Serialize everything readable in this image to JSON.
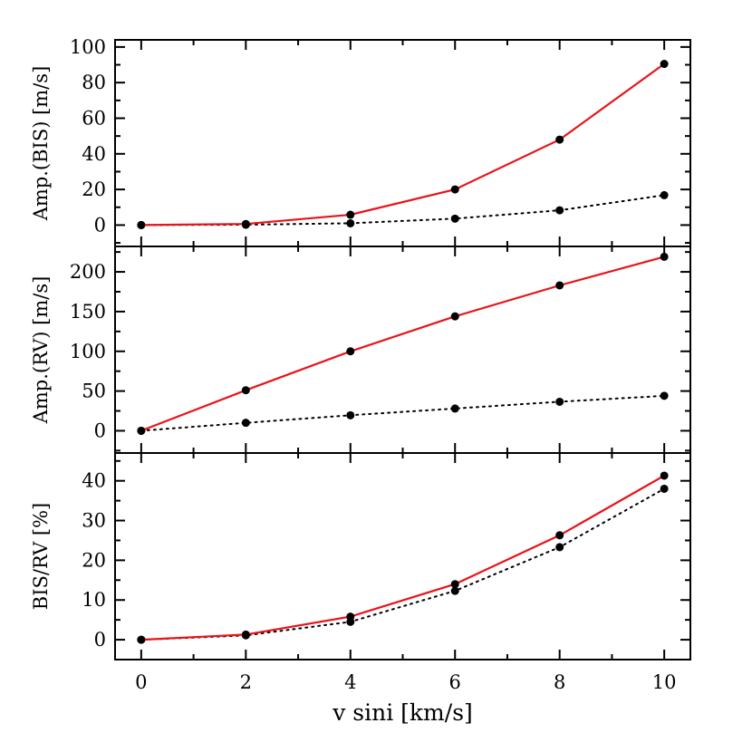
{
  "chart_data": {
    "type": "line",
    "x_shared": [
      0,
      2,
      4,
      6,
      8,
      10
    ],
    "xlabel": "v sini [km/s]",
    "xlim": [
      -0.5,
      10.5
    ],
    "xticks": [
      0,
      2,
      4,
      6,
      8,
      10
    ],
    "xtick_labels": [
      "0",
      "2",
      "4",
      "6",
      "8",
      "10"
    ],
    "grid": false,
    "panels": [
      {
        "ylabel": "Amp.(BIS) [m/s]",
        "ylim": [
          -12,
          104
        ],
        "yticks": [
          0,
          20,
          40,
          60,
          80,
          100
        ],
        "ytick_labels": [
          "0",
          "20",
          "40",
          "60",
          "80",
          "100"
        ],
        "series": [
          {
            "style": "solid",
            "color": "#e8141a",
            "values": [
              0,
              0.6,
              5.8,
              20,
              48,
              90.5
            ]
          },
          {
            "style": "dotted",
            "color": "#000000",
            "values": [
              0,
              0.2,
              1.0,
              3.6,
              8.3,
              16.8
            ]
          }
        ]
      },
      {
        "ylabel": "Amp.(RV) [m/s]",
        "ylim": [
          -28,
          232
        ],
        "yticks": [
          0,
          50,
          100,
          150,
          200
        ],
        "ytick_labels": [
          "0",
          "50",
          "100",
          "150",
          "200"
        ],
        "series": [
          {
            "style": "solid",
            "color": "#e8141a",
            "values": [
              0,
              51,
              100,
              144,
              183,
              219
            ]
          },
          {
            "style": "dotted",
            "color": "#000000",
            "values": [
              0,
              10,
              19.5,
              28,
              36.5,
              44
            ]
          }
        ]
      },
      {
        "ylabel": "BIS/RV [%]",
        "ylim": [
          -5,
          47
        ],
        "yticks": [
          0,
          10,
          20,
          30,
          40
        ],
        "ytick_labels": [
          "0",
          "10",
          "20",
          "30",
          "40"
        ],
        "series": [
          {
            "style": "solid",
            "color": "#e8141a",
            "values": [
              0,
              1.3,
              5.8,
              14,
              26.3,
              41.3
            ]
          },
          {
            "style": "dotted",
            "color": "#000000",
            "values": [
              0,
              1.1,
              4.5,
              12.3,
              23.3,
              38
            ]
          }
        ]
      }
    ]
  }
}
